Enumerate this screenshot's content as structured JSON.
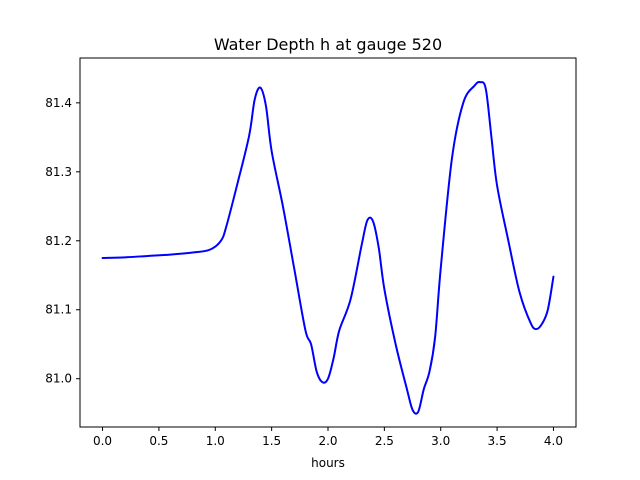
{
  "chart_data": {
    "type": "line",
    "title": "Water Depth h at gauge 520",
    "xlabel": "hours",
    "ylabel": "",
    "xlim": [
      -0.2,
      4.2
    ],
    "ylim": [
      80.93,
      81.465
    ],
    "xticks": [
      0.0,
      0.5,
      1.0,
      1.5,
      2.0,
      2.5,
      3.0,
      3.5,
      4.0
    ],
    "xtick_labels": [
      "0.0",
      "0.5",
      "1.0",
      "1.5",
      "2.0",
      "2.5",
      "3.0",
      "3.5",
      "4.0"
    ],
    "yticks": [
      81.0,
      81.1,
      81.2,
      81.3,
      81.4
    ],
    "ytick_labels": [
      "81.0",
      "81.1",
      "81.2",
      "81.3",
      "81.4"
    ],
    "grid": false,
    "series": [
      {
        "color": "#0000ff",
        "x": [
          0.0,
          0.2,
          0.4,
          0.6,
          0.8,
          0.95,
          1.05,
          1.1,
          1.2,
          1.3,
          1.35,
          1.4,
          1.45,
          1.5,
          1.6,
          1.7,
          1.8,
          1.85,
          1.9,
          1.95,
          2.0,
          2.05,
          2.1,
          2.2,
          2.3,
          2.35,
          2.4,
          2.45,
          2.5,
          2.6,
          2.7,
          2.75,
          2.8,
          2.85,
          2.9,
          2.95,
          3.0,
          3.1,
          3.2,
          3.3,
          3.35,
          3.4,
          3.45,
          3.5,
          3.6,
          3.7,
          3.8,
          3.85,
          3.9,
          3.95,
          4.0
        ],
        "y": [
          81.175,
          81.176,
          81.178,
          81.18,
          81.183,
          81.187,
          81.2,
          81.222,
          81.285,
          81.352,
          81.405,
          81.422,
          81.395,
          81.33,
          81.25,
          81.16,
          81.07,
          81.05,
          81.01,
          80.995,
          81.0,
          81.03,
          81.07,
          81.115,
          81.195,
          81.23,
          81.228,
          81.19,
          81.13,
          81.05,
          80.985,
          80.955,
          80.952,
          80.985,
          81.01,
          81.06,
          81.16,
          81.32,
          81.4,
          81.425,
          81.43,
          81.42,
          81.35,
          81.28,
          81.2,
          81.125,
          81.08,
          81.072,
          81.08,
          81.1,
          81.148
        ]
      }
    ]
  }
}
